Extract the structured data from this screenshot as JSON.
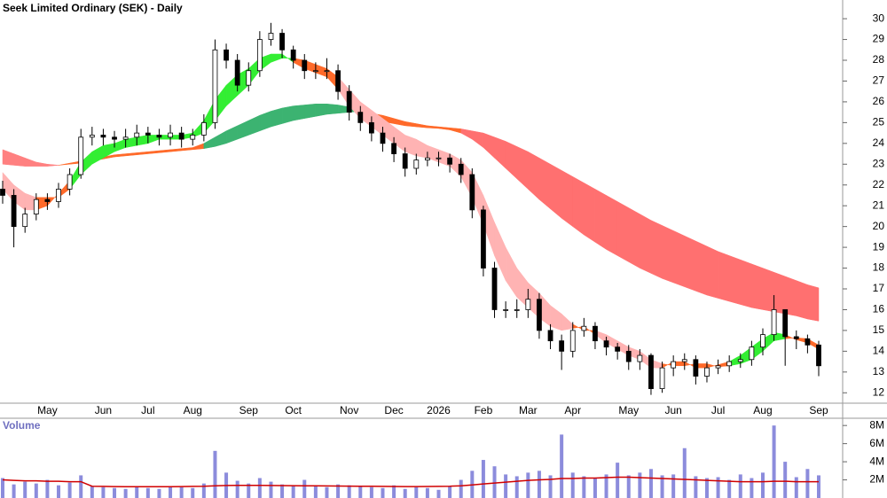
{
  "chart_data": [
    {
      "type": "candlestick",
      "title": "Seek Limited Ordinary (SEK) - Daily",
      "categories": [
        null,
        null,
        null,
        null,
        "May",
        null,
        null,
        null,
        null,
        "Jun",
        null,
        null,
        null,
        "Jul",
        null,
        null,
        null,
        "Aug",
        null,
        null,
        null,
        null,
        "Sep",
        null,
        null,
        null,
        "Oct",
        null,
        null,
        null,
        null,
        "Nov",
        null,
        null,
        null,
        "Dec",
        null,
        null,
        null,
        "2026",
        null,
        null,
        null,
        "Feb",
        null,
        null,
        null,
        "Mar",
        null,
        null,
        null,
        "Apr",
        null,
        null,
        null,
        null,
        "May",
        null,
        null,
        null,
        "Jun",
        null,
        null,
        null,
        "Jul",
        null,
        null,
        null,
        "Aug",
        null,
        null,
        null,
        null,
        "Sep"
      ],
      "open": [
        21.8,
        21.5,
        20,
        20.6,
        21.3,
        21.2,
        21.8,
        22.5,
        24.3,
        24.4,
        24.3,
        24.2,
        24.3,
        24.5,
        24.4,
        24.3,
        24.5,
        24.2,
        24.4,
        25,
        28.5,
        28,
        26.8,
        27.5,
        29,
        29.3,
        28.5,
        28,
        27.5,
        27.5,
        27.5,
        26.5,
        25.5,
        25,
        24.5,
        24,
        23.5,
        22.8,
        23.2,
        23.3,
        23.3,
        23,
        22.5,
        20.8,
        18,
        16,
        16,
        16,
        16.5,
        15,
        14.5,
        14,
        15,
        15.2,
        14.5,
        14.2,
        14,
        13.5,
        13.8,
        12.2,
        13.2,
        13.5,
        13.6,
        12.8,
        13.2,
        13.3,
        13.5,
        13.6,
        14.2,
        14.8,
        16,
        14.7,
        14.6,
        14.3
      ],
      "high": [
        22.2,
        21.8,
        20.9,
        21.6,
        21.6,
        22.1,
        22.8,
        24.7,
        24.8,
        24.7,
        24.6,
        24.7,
        24.9,
        24.8,
        24.7,
        24.9,
        24.8,
        24.7,
        25.4,
        29,
        28.8,
        28.3,
        27.9,
        29.4,
        29.8,
        29.5,
        28.7,
        28.3,
        27.9,
        28.1,
        27.8,
        26.8,
        25.8,
        25.3,
        24.8,
        24.3,
        23.8,
        23.5,
        23.6,
        23.6,
        23.5,
        23.3,
        22.8,
        21,
        18.3,
        16.4,
        16.5,
        17,
        16.8,
        15.3,
        14.8,
        15.4,
        15.6,
        15.4,
        14.7,
        14.4,
        14.3,
        14.1,
        13.9,
        13.5,
        13.8,
        13.9,
        13.8,
        13.5,
        13.6,
        13.8,
        13.9,
        14.5,
        15.1,
        16.7,
        16,
        15,
        14.8,
        14.5
      ],
      "low": [
        21.1,
        19,
        19.7,
        20.3,
        20.8,
        20.9,
        21.5,
        22.3,
        23.9,
        23.9,
        23.8,
        23.8,
        23.9,
        24,
        23.9,
        23.9,
        23.8,
        23.9,
        24.1,
        24.7,
        27.6,
        26.5,
        26.5,
        27.2,
        28.7,
        28.1,
        27.6,
        27.1,
        27.1,
        27.1,
        26.1,
        25.1,
        24.6,
        24.1,
        23.6,
        23.1,
        22.4,
        22.5,
        22.9,
        22.9,
        22.6,
        22.1,
        20.4,
        17.6,
        15.6,
        15.6,
        15.6,
        15.6,
        14.6,
        14.1,
        13.1,
        13.7,
        14.7,
        14.1,
        13.8,
        13.6,
        13.1,
        13.1,
        11.9,
        12,
        12.8,
        13.1,
        12.4,
        12.5,
        12.9,
        13,
        13.2,
        13.3,
        13.8,
        14.5,
        13.3,
        14.1,
        13.9,
        12.8
      ],
      "close": [
        21.5,
        20,
        20.6,
        21.3,
        21.2,
        21.8,
        22.5,
        24.3,
        24.4,
        24.3,
        24.2,
        24.3,
        24.5,
        24.4,
        24.3,
        24.5,
        24.2,
        24.4,
        25,
        28.5,
        28,
        26.8,
        27.5,
        29,
        29.3,
        28.5,
        28,
        27.5,
        27.5,
        27.5,
        26.5,
        25.5,
        25,
        24.5,
        24,
        23.5,
        22.8,
        23.2,
        23.3,
        23.3,
        23,
        22.5,
        20.8,
        18,
        16,
        16,
        16,
        16.5,
        15,
        14.5,
        14,
        15,
        15.2,
        14.5,
        14.2,
        14,
        13.5,
        13.8,
        12.2,
        13.2,
        13.5,
        13.6,
        12.8,
        13.2,
        13.3,
        13.5,
        13.6,
        14.2,
        14.8,
        16,
        14.7,
        14.6,
        14.3,
        13.3
      ],
      "up_color": "#ffffff",
      "down_color": "#000000",
      "outline_color": "#000000",
      "ribbons": [
        {
          "short": [
            23.0,
            22.95,
            22.9,
            22.9,
            22.9,
            22.95,
            23.05,
            23.15,
            23.25,
            23.35,
            23.45,
            23.5,
            23.55,
            23.6,
            23.65,
            23.7,
            23.75,
            23.8,
            24.0,
            24.3,
            24.6,
            24.85,
            25.1,
            25.35,
            25.55,
            25.7,
            25.8,
            25.85,
            25.9,
            25.9,
            25.85,
            25.75,
            25.35,
            25.2,
            25.05,
            24.95,
            24.85,
            24.8,
            24.75,
            24.72,
            24.65,
            24.5,
            24.2,
            23.8,
            23.3,
            22.8,
            22.3,
            21.8,
            21.3,
            20.85,
            20.4,
            20.0,
            19.6,
            19.25,
            18.9,
            18.6,
            18.3,
            18.0,
            17.75,
            17.5,
            17.3,
            17.1,
            16.9,
            16.7,
            16.55,
            16.4,
            16.25,
            16.1,
            16.0,
            15.9,
            15.8,
            15.7,
            15.55,
            15.45
          ],
          "long": [
            23.7,
            23.5,
            23.3,
            23.1,
            23.0,
            22.95,
            23.0,
            23.05,
            23.15,
            23.25,
            23.35,
            23.4,
            23.45,
            23.5,
            23.55,
            23.6,
            23.65,
            23.7,
            23.75,
            23.85,
            24.0,
            24.2,
            24.4,
            24.6,
            24.8,
            24.95,
            25.1,
            25.2,
            25.3,
            25.4,
            25.45,
            25.5,
            25.55,
            25.45,
            25.35,
            25.2,
            25.05,
            24.95,
            24.85,
            24.8,
            24.75,
            24.7,
            24.6,
            24.5,
            24.3,
            24.1,
            23.85,
            23.6,
            23.3,
            23.0,
            22.7,
            22.4,
            22.1,
            21.8,
            21.5,
            21.2,
            20.9,
            20.6,
            20.3,
            20.05,
            19.8,
            19.55,
            19.3,
            19.05,
            18.8,
            18.6,
            18.4,
            18.2,
            18.0,
            17.8,
            17.6,
            17.4,
            17.2,
            17.05
          ],
          "colors": [
            "#ff8080",
            "#ff8080",
            "#ff8080",
            "#ff8080",
            "#ff8080",
            "#ff6a2a",
            "#ff6a2a",
            "#ff6a2a",
            "#ff6a2a",
            "#ff6a2a",
            "#ff6a2a",
            "#ff6a2a",
            "#ff6a2a",
            "#ff6a2a",
            "#ff6a2a",
            "#ff6a2a",
            "#ff6a2a",
            "#ff6a2a",
            "#3cb371",
            "#3cb371",
            "#3cb371",
            "#3cb371",
            "#3cb371",
            "#3cb371",
            "#3cb371",
            "#3cb371",
            "#3cb371",
            "#3cb371",
            "#3cb371",
            "#3cb371",
            "#3cb371",
            "#3cb371",
            "#ff6a2a",
            "#ff6a2a",
            "#ff6a2a",
            "#ff6a2a",
            "#ff6a2a",
            "#ff6a2a",
            "#ff6a2a",
            "#ff6a2a",
            "#ff6a2a",
            "#ff7070",
            "#ff7070",
            "#ff7070",
            "#ff7070",
            "#ff7070",
            "#ff7070",
            "#ff7070",
            "#ff7070",
            "#ff7070",
            "#ff7070",
            "#ff7070",
            "#ff7070",
            "#ff7070",
            "#ff7070",
            "#ff7070",
            "#ff7070",
            "#ff7070",
            "#ff7070",
            "#ff7070",
            "#ff7070",
            "#ff7070",
            "#ff7070",
            "#ff7070",
            "#ff7070",
            "#ff7070",
            "#ff7070",
            "#ff7070",
            "#ff7070",
            "#ff7070",
            "#ff7070",
            "#ff7070",
            "#ff7070",
            "#ff7070"
          ]
        },
        {
          "short": [
            21.8,
            21.2,
            20.8,
            20.8,
            21.0,
            21.6,
            22.2,
            23.1,
            23.6,
            23.9,
            24.0,
            24.2,
            24.3,
            24.4,
            24.4,
            24.4,
            24.4,
            24.5,
            25.1,
            26.1,
            26.8,
            27.3,
            27.6,
            28.1,
            28.3,
            28.3,
            27.9,
            27.6,
            27.4,
            27.2,
            26.6,
            25.8,
            25.2,
            24.8,
            24.4,
            24.0,
            23.6,
            23.4,
            23.3,
            23.1,
            22.9,
            22.4,
            21.4,
            20.1,
            18.6,
            17.4,
            16.6,
            16.1,
            15.6,
            15.2,
            15.0,
            15.1,
            15.2,
            14.8,
            14.4,
            14.1,
            13.8,
            13.6,
            13.2,
            13.2,
            13.5,
            13.5,
            13.2,
            13.2,
            13.35,
            13.5,
            13.8,
            14.2,
            14.6,
            14.9,
            14.8,
            14.55,
            14.4,
            14.1
          ],
          "long": [
            22.6,
            22.0,
            21.6,
            21.4,
            21.4,
            21.4,
            21.8,
            22.5,
            23.0,
            23.3,
            23.6,
            23.8,
            23.9,
            24.0,
            24.2,
            24.2,
            24.2,
            24.3,
            24.5,
            25.1,
            25.8,
            26.3,
            26.8,
            27.5,
            27.9,
            28.1,
            28.1,
            28.0,
            27.8,
            27.6,
            27.2,
            26.6,
            26.0,
            25.6,
            25.2,
            24.8,
            24.4,
            24.2,
            23.9,
            23.7,
            23.5,
            23.2,
            22.6,
            21.5,
            20.2,
            19.0,
            18.0,
            17.3,
            16.8,
            16.2,
            15.8,
            15.3,
            15.0,
            15.0,
            14.8,
            14.5,
            14.2,
            14.0,
            13.6,
            13.4,
            13.3,
            13.3,
            13.4,
            13.4,
            13.25,
            13.3,
            13.4,
            13.6,
            14.0,
            14.5,
            14.6,
            14.65,
            14.6,
            14.3
          ],
          "colors": [
            "#ffb3b3",
            "#ffb3b3",
            "#ffb3b3",
            "#ff6a2a",
            "#ff6a2a",
            "#ff6a2a",
            "#33ee33",
            "#33ee33",
            "#33ee33",
            "#33ee33",
            "#33ee33",
            "#33ee33",
            "#33ee33",
            "#33ee33",
            "#33ee33",
            "#33ee33",
            "#33ee33",
            "#33ee33",
            "#33ee33",
            "#33ee33",
            "#33ee33",
            "#33ee33",
            "#33ee33",
            "#33ee33",
            "#33ee33",
            "#33ee33",
            "#ff6a2a",
            "#ff6a2a",
            "#ff6a2a",
            "#ff6a2a",
            "#ffb3b3",
            "#ffb3b3",
            "#ffb3b3",
            "#ffb3b3",
            "#ffb3b3",
            "#ffb3b3",
            "#ffb3b3",
            "#ffb3b3",
            "#ffb3b3",
            "#ffb3b3",
            "#ffb3b3",
            "#ffb3b3",
            "#ffb3b3",
            "#ffb3b3",
            "#ffb3b3",
            "#ffb3b3",
            "#ffb3b3",
            "#ffb3b3",
            "#ffb3b3",
            "#ffb3b3",
            "#ffb3b3",
            "#ff6a2a",
            "#ff6a2a",
            "#ffb3b3",
            "#ffb3b3",
            "#ffb3b3",
            "#ffb3b3",
            "#ffb3b3",
            "#ffb3b3",
            "#ff6a2a",
            "#ff6a2a",
            "#ff6a2a",
            "#ff6a2a",
            "#ff6a2a",
            "#ff6a2a",
            "#33ee33",
            "#33ee33",
            "#33ee33",
            "#33ee33",
            "#33ee33",
            "#ff6a2a",
            "#ff6a2a",
            "#ff6a2a",
            "#ff6a2a"
          ]
        }
      ],
      "ylim": [
        11.5,
        30.9
      ],
      "yticks": [
        12,
        13,
        14,
        15,
        16,
        17,
        18,
        19,
        20,
        21,
        22,
        23,
        24,
        25,
        26,
        27,
        28,
        29,
        30
      ],
      "grid": false
    },
    {
      "type": "bar",
      "title": "Volume",
      "color": "#8c8cdc",
      "values": [
        2200000,
        1500000,
        1800000,
        1600000,
        2000000,
        1400000,
        1700000,
        2500000,
        1300000,
        1200000,
        1100000,
        1000000,
        1200000,
        1100000,
        1000000,
        1300000,
        1200000,
        1100000,
        1600000,
        5200000,
        2800000,
        1900000,
        1600000,
        2200000,
        1800000,
        1500000,
        1400000,
        2000000,
        1300000,
        1200000,
        1500000,
        1400000,
        1300000,
        1200000,
        1100000,
        1400000,
        1000000,
        1200000,
        1100000,
        900000,
        1300000,
        2000000,
        3000000,
        4200000,
        3500000,
        2600000,
        2400000,
        2800000,
        3000000,
        2500000,
        7000000,
        2800000,
        2400000,
        2200000,
        2600000,
        3900000,
        2500000,
        2800000,
        3200000,
        2500000,
        2600000,
        5500000,
        2400000,
        2200000,
        2300000,
        2000000,
        2600000,
        2200000,
        2800000,
        8000000,
        4000000,
        2300000,
        3200000,
        2500000
      ],
      "moving_average": {
        "color": "#d00000",
        "values": [
          2000000,
          1950000,
          1900000,
          1900000,
          1850000,
          1850000,
          1800000,
          1800000,
          1300000,
          1280000,
          1260000,
          1250000,
          1250000,
          1240000,
          1240000,
          1250000,
          1260000,
          1280000,
          1300000,
          1350000,
          1380000,
          1400000,
          1400000,
          1390000,
          1380000,
          1370000,
          1360000,
          1350000,
          1340000,
          1330000,
          1320000,
          1310000,
          1300000,
          1290000,
          1280000,
          1270000,
          1260000,
          1260000,
          1270000,
          1280000,
          1300000,
          1350000,
          1450000,
          1550000,
          1650000,
          1750000,
          1850000,
          1950000,
          2000000,
          2050000,
          2150000,
          2150000,
          2200000,
          2200000,
          2250000,
          2300000,
          2300000,
          2250000,
          2200000,
          2150000,
          2100000,
          2050000,
          2000000,
          1950000,
          1900000,
          1850000,
          1800000,
          1800000,
          1800000,
          1850000,
          1850000,
          1800000,
          1800000,
          1800000
        ]
      },
      "ylim": [
        0,
        8800000
      ],
      "yticks": [
        {
          "value": 2000000,
          "label": "2M"
        },
        {
          "value": 4000000,
          "label": "4M"
        },
        {
          "value": 6000000,
          "label": "6M"
        },
        {
          "value": 8000000,
          "label": "8M"
        }
      ]
    }
  ]
}
